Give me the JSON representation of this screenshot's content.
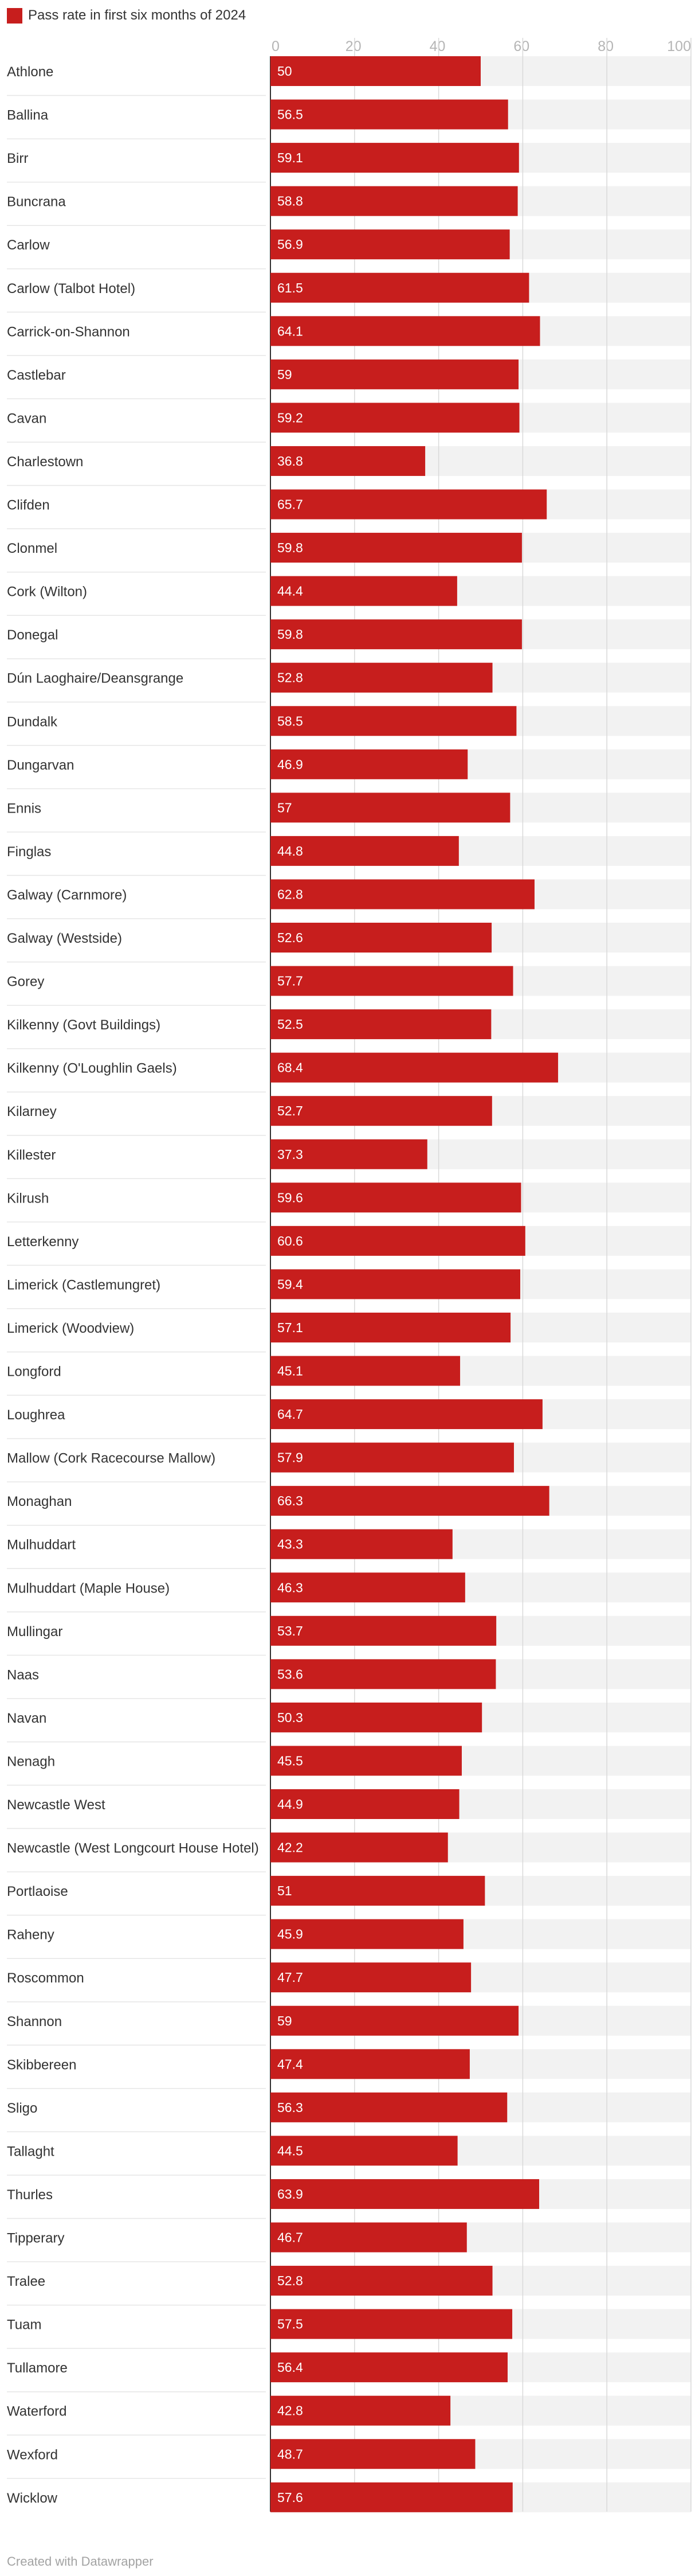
{
  "chart_data": {
    "type": "bar",
    "orientation": "horizontal",
    "title": "",
    "xlabel": "",
    "ylabel": "",
    "xlim": [
      0,
      100
    ],
    "ticks": [
      0,
      20,
      40,
      60,
      80,
      100
    ],
    "grid": true,
    "legend_position": "top-left",
    "series": [
      {
        "name": "Pass rate in first six months of 2024",
        "color": "#c71e1d",
        "values": [
          50,
          56.5,
          59.1,
          58.8,
          56.9,
          61.5,
          64.1,
          59,
          59.2,
          36.8,
          65.7,
          59.8,
          44.4,
          59.8,
          52.8,
          58.5,
          46.9,
          57,
          44.8,
          62.8,
          52.6,
          57.7,
          52.5,
          68.4,
          52.7,
          37.3,
          59.6,
          60.6,
          59.4,
          57.1,
          45.1,
          64.7,
          57.9,
          66.3,
          43.3,
          46.3,
          53.7,
          53.6,
          50.3,
          45.5,
          44.9,
          42.2,
          51,
          45.9,
          47.7,
          59,
          47.4,
          56.3,
          44.5,
          63.9,
          46.7,
          52.8,
          57.5,
          56.4,
          42.8,
          48.7,
          57.6
        ]
      }
    ],
    "categories": [
      "Athlone",
      "Ballina",
      "Birr",
      "Buncrana",
      "Carlow",
      "Carlow (Talbot Hotel)",
      "Carrick-on-Shannon",
      "Castlebar",
      "Cavan",
      "Charlestown",
      "Clifden",
      "Clonmel",
      "Cork (Wilton)",
      "Donegal",
      "Dún Laoghaire/Deansgrange",
      "Dundalk",
      "Dungarvan",
      "Ennis",
      "Finglas",
      "Galway (Carnmore)",
      "Galway (Westside)",
      "Gorey",
      "Kilkenny (Govt Buildings)",
      "Kilkenny (O'Loughlin Gaels)",
      "Kilarney",
      "Killester",
      "Kilrush",
      "Letterkenny",
      "Limerick (Castlemungret)",
      "Limerick (Woodview)",
      "Longford",
      "Loughrea",
      "Mallow (Cork Racecourse Mallow)",
      "Monaghan",
      "Mulhuddart",
      "Mulhuddart (Maple House)",
      "Mullingar",
      "Naas",
      "Navan",
      "Nenagh",
      "Newcastle West",
      "Newcastle (West Longcourt House Hotel)",
      "Portlaoise",
      "Raheny",
      "Roscommon",
      "Shannon",
      "Skibbereen",
      "Sligo",
      "Tallaght",
      "Thurles",
      "Tipperary",
      "Tralee",
      "Tuam",
      "Tullamore",
      "Waterford",
      "Wexford",
      "Wicklow"
    ],
    "background_bar_color": "#f2f2f2",
    "gridline_color": "#d9d9d9"
  },
  "footer": {
    "credit": "Created with Datawrapper"
  }
}
